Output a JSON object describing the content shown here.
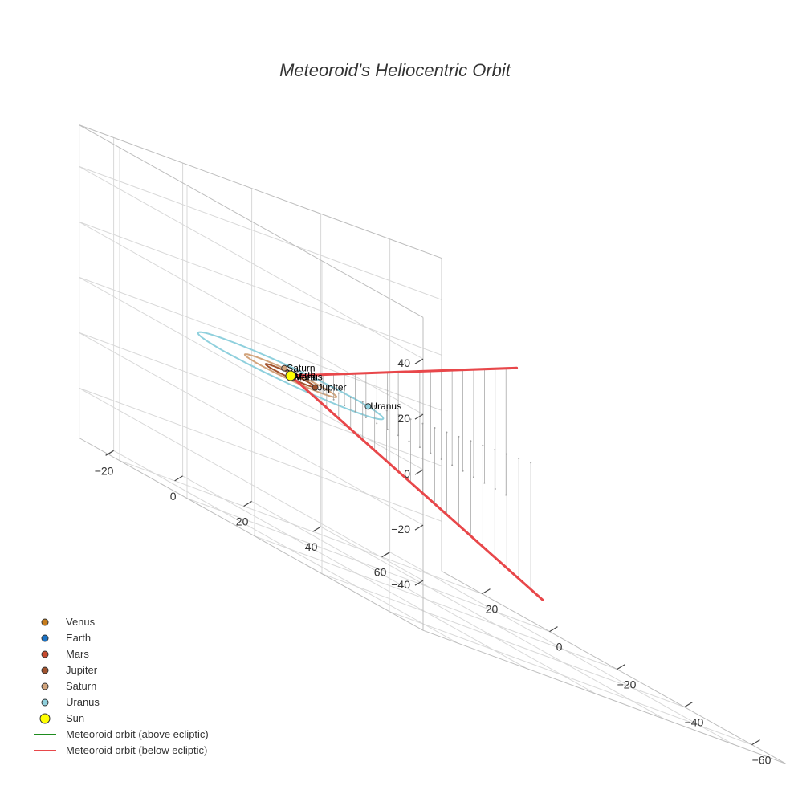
{
  "chart_data": {
    "type": "scatter3d",
    "title": "Meteoroid's Heliocentric Orbit",
    "axes": {
      "x": {
        "ticks": [
          -20,
          0,
          20,
          40,
          60
        ],
        "range": [
          -30,
          75
        ]
      },
      "y": {
        "ticks": [
          -60,
          -40,
          -20,
          0,
          20
        ],
        "range": [
          -70,
          32
        ]
      },
      "z": {
        "ticks": [
          -40,
          -20,
          0,
          20,
          40
        ],
        "range": [
          -58,
          55
        ]
      }
    },
    "grid": true,
    "legend_position": "bottom-left",
    "planets": [
      {
        "name": "Venus",
        "color": "#c77c1c",
        "x": 0.2,
        "y": -0.6,
        "z": 0.0,
        "label": "Venus"
      },
      {
        "name": "Earth",
        "color": "#1a73c6",
        "x": 0.6,
        "y": 0.75,
        "z": 0.0,
        "label": "Earth"
      },
      {
        "name": "Mars",
        "color": "#c64a2e",
        "x": -0.9,
        "y": -1.2,
        "z": 0.0,
        "label": "Mars"
      },
      {
        "name": "Jupiter",
        "color": "#a0522d",
        "x": 3.0,
        "y": -4.2,
        "z": 0.0,
        "label": "Jupiter"
      },
      {
        "name": "Saturn",
        "color": "#d2a47c",
        "x": 6.0,
        "y": 8.0,
        "z": 0.0,
        "label": "Saturn"
      },
      {
        "name": "Uranus",
        "color": "#8fd0dd",
        "x": 19.0,
        "y": -3.5,
        "z": 0.0,
        "label": "Uranus"
      },
      {
        "name": "Sun",
        "color": "#ffff00",
        "x": 0,
        "y": 0,
        "z": 0,
        "label": ""
      }
    ],
    "orbits": [
      {
        "name": "Jupiter orbit",
        "color": "#a0522d",
        "radius": 5.2
      },
      {
        "name": "Saturn orbit",
        "color": "#d2a47c",
        "radius": 9.5
      },
      {
        "name": "Uranus orbit",
        "color": "#8fd0dd",
        "radius": 19.2
      }
    ],
    "series": [
      {
        "name": "Meteoroid orbit (above ecliptic)",
        "color": "#1e8c1e",
        "points": []
      },
      {
        "name": "Meteoroid orbit (below ecliptic)",
        "color": "#e8474a",
        "points": [
          {
            "x": 75,
            "y": 2,
            "z": -48
          },
          {
            "x": 0,
            "y": 0,
            "z": 0
          },
          {
            "x": 2,
            "y": -65,
            "z": 48
          }
        ]
      }
    ]
  },
  "legend": {
    "items": [
      {
        "label": "Venus",
        "kind": "marker",
        "color": "#c77c1c"
      },
      {
        "label": "Earth",
        "kind": "marker",
        "color": "#1a73c6"
      },
      {
        "label": "Mars",
        "kind": "marker",
        "color": "#c64a2e"
      },
      {
        "label": "Jupiter",
        "kind": "marker",
        "color": "#a0522d"
      },
      {
        "label": "Saturn",
        "kind": "marker",
        "color": "#d2a47c"
      },
      {
        "label": "Uranus",
        "kind": "marker",
        "color": "#8fd0dd"
      },
      {
        "label": "Sun",
        "kind": "marker-large",
        "color": "#ffff00"
      },
      {
        "label": "Meteoroid orbit (above ecliptic)",
        "kind": "line",
        "color": "#1e8c1e"
      },
      {
        "label": "Meteoroid orbit (below ecliptic)",
        "kind": "line",
        "color": "#e8474a"
      }
    ]
  }
}
